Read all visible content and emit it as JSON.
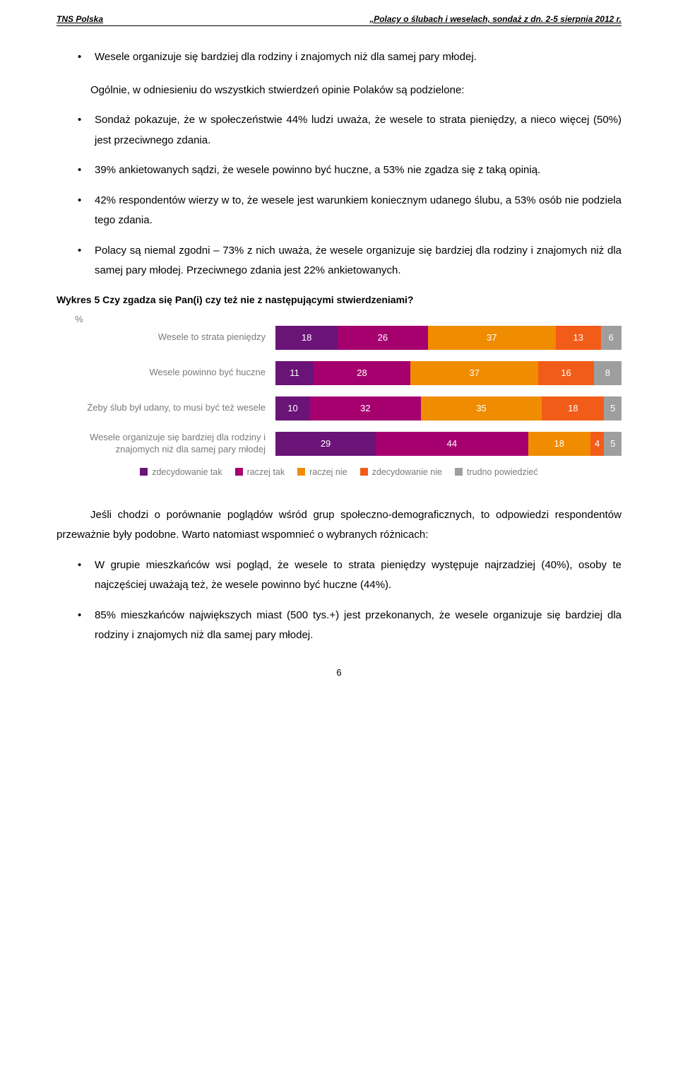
{
  "header": {
    "left": "TNS Polska",
    "right": "„Polacy o ślubach i weselach, sondaż z dn. 2-5 sierpnia 2012 r."
  },
  "top_bullet": "Wesele organizuje się bardziej dla rodziny i znajomych niż dla samej pary młodej.",
  "intro_para": "Ogólnie, w odniesieniu do wszystkich stwierdzeń opinie Polaków są podzielone:",
  "bullets_main": [
    "Sondaż pokazuje, że w społeczeństwie 44% ludzi uważa, że wesele to strata pieniędzy, a nieco więcej (50%) jest przeciwnego zdania.",
    "39% ankietowanych sądzi, że wesele powinno być huczne, a 53% nie zgadza się z taką opinią.",
    "42% respondentów wierzy w to, że wesele jest warunkiem koniecznym udanego ślubu, a 53% osób nie podziela tego zdania.",
    "Polacy są niemal zgodni – 73% z nich uważa, że wesele organizuje się bardziej dla rodziny i znajomych niż dla samej pary młodej. Przeciwnego zdania jest 22% ankietowanych."
  ],
  "chart": {
    "title": "Wykres 5 Czy zgadza się Pan(i) czy też nie z następującymi stwierdzeniami?",
    "pct_symbol": "%",
    "colors": {
      "c1": "#6a1478",
      "c2": "#a6006f",
      "c3": "#f08c00",
      "c4": "#f25c19",
      "c5": "#9e9e9e"
    },
    "text_colors": {
      "c1": "#ffffff",
      "c2": "#ffffff",
      "c3": "#ffffff",
      "c4": "#ffffff",
      "c5": "#ffffff"
    },
    "rows": [
      {
        "label": "Wesele to strata pieniędzy",
        "values": [
          18,
          26,
          37,
          13,
          6
        ]
      },
      {
        "label": "Wesele powinno być huczne",
        "values": [
          11,
          28,
          37,
          16,
          8
        ]
      },
      {
        "label": "Żeby ślub był udany, to musi być też wesele",
        "values": [
          10,
          32,
          35,
          18,
          5
        ]
      },
      {
        "label": "Wesele organizuje się bardziej dla rodziny i znajomych niż dla samej pary młodej",
        "values": [
          29,
          44,
          18,
          4,
          5
        ]
      }
    ],
    "legend": [
      "zdecydowanie tak",
      "raczej tak",
      "raczej nie",
      "zdecydowanie nie",
      "trudno powiedzieć"
    ]
  },
  "closing_para": "Jeśli chodzi o porównanie poglądów wśród grup społeczno-demograficznych, to odpowiedzi respondentów przeważnie były podobne. Warto natomiast wspomnieć o wybranych różnicach:",
  "bullets_closing": [
    "W grupie mieszkańców wsi pogląd, że wesele to strata pieniędzy występuje najrzadziej (40%), osoby te najczęściej uważają też, że wesele powinno być huczne (44%).",
    "85% mieszkańców największych miast (500 tys.+) jest przekonanych, że wesele organizuje się bardziej dla rodziny i znajomych niż dla samej pary młodej."
  ],
  "page_number": "6"
}
